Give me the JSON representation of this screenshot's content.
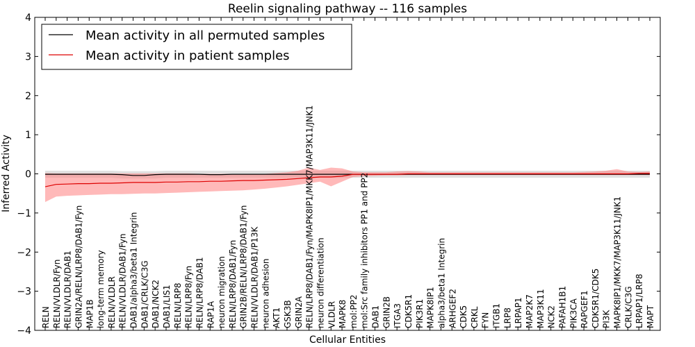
{
  "chart_data": {
    "type": "line",
    "title": "Reelin signaling pathway -- 116 samples",
    "xlabel": "Cellular Entities",
    "ylabel": "Inferred Activity",
    "ylim": [
      -4,
      4
    ],
    "yticks": [
      4,
      3,
      2,
      1,
      0,
      -1,
      -2,
      -3,
      -4
    ],
    "ytick_labels": [
      "4",
      "3",
      "2",
      "1",
      "0",
      "−1",
      "−2",
      "−3",
      "−4"
    ],
    "grid": false,
    "legend_position": "upper-left",
    "categories": [
      "RELN",
      "RELN/VLDLR/Fyn",
      "RELN/VLDLR/DAB1",
      "GRIN2A/RELN/LRP8/DAB1/Fyn",
      "MAP1B",
      "long-term memory",
      "RELN/VLDLR",
      "RELN/VLDLR/DAB1/Fyn",
      "DAB1/alpha3/beta1 Integrin",
      "DAB1/CRLK/C3G",
      "DAB1/NCK2",
      "DAB1/LIS1",
      "RELN/LRP8",
      "RELN/LRP8/Fyn",
      "RELN/LRP8/DAB1",
      "RAP1A",
      "neuron migration",
      "RELN/LRP8/DAB1/Fyn",
      "GRIN2B/RELN/LRP8/DAB1/Fyn",
      "RELN/VLDLR/DAB1/P13K",
      "neuron adhesion",
      "AKT1",
      "GSK3B",
      "GRIN2A",
      "RELN/LRP8/DAB1/Fyn/MAPK8IP1/MKK7/MAP3K11/JNK1",
      "neuron differentiation",
      "VLDLR",
      "MAPK8",
      "mol:PP2",
      "mol:Src family inhibitors PP1 and PP2",
      "DAB1",
      "GRIN2B",
      "ITGA3",
      "CDK5R1",
      "PIK3R1",
      "MAPK8IP1",
      "alpha3/beta1 Integrin",
      "ARHGEF2",
      "CDK5",
      "CRKL",
      "FYN",
      "ITGB1",
      "LRP8",
      "LRPAP1",
      "MAP2K7",
      "MAP3K11",
      "NCK2",
      "PAFAH1B1",
      "PIK3CA",
      "RAPGEF1",
      "CDK5R1/CDK5",
      "PI3K",
      "MAPK8IP1/MKK7/MAP3K11/JNK1",
      "CRLK/C3G",
      "LRPAP1/LRP8",
      "MAPT"
    ],
    "series": [
      {
        "name": "Mean activity in all permuted samples",
        "color": "#000000",
        "band_color": "#bbbbbb",
        "values": [
          -0.01,
          -0.01,
          -0.01,
          -0.01,
          -0.01,
          -0.01,
          -0.01,
          -0.02,
          -0.04,
          -0.04,
          -0.02,
          -0.01,
          -0.01,
          -0.01,
          -0.01,
          -0.02,
          -0.02,
          -0.01,
          -0.01,
          -0.01,
          -0.01,
          -0.01,
          -0.01,
          -0.01,
          -0.01,
          -0.01,
          -0.01,
          -0.01,
          -0.01,
          -0.01,
          -0.01,
          -0.01,
          -0.01,
          -0.01,
          -0.01,
          -0.01,
          -0.01,
          -0.01,
          -0.01,
          -0.01,
          -0.01,
          -0.01,
          -0.01,
          -0.01,
          -0.01,
          -0.01,
          -0.01,
          -0.01,
          -0.01,
          -0.01,
          -0.01,
          -0.01,
          -0.01,
          -0.01,
          -0.01,
          -0.01
        ],
        "lower": [
          -0.1,
          -0.1,
          -0.1,
          -0.1,
          -0.1,
          -0.1,
          -0.1,
          -0.12,
          -0.12,
          -0.12,
          -0.12,
          -0.1,
          -0.1,
          -0.1,
          -0.1,
          -0.1,
          -0.1,
          -0.1,
          -0.1,
          -0.1,
          -0.1,
          -0.1,
          -0.1,
          -0.1,
          -0.1,
          -0.1,
          -0.1,
          -0.1,
          -0.1,
          -0.1,
          -0.1,
          -0.1,
          -0.1,
          -0.1,
          -0.1,
          -0.1,
          -0.1,
          -0.1,
          -0.1,
          -0.1,
          -0.1,
          -0.1,
          -0.1,
          -0.1,
          -0.1,
          -0.1,
          -0.1,
          -0.1,
          -0.1,
          -0.1,
          -0.1,
          -0.1,
          -0.1,
          -0.1,
          -0.1,
          -0.1
        ],
        "upper": [
          0.08,
          0.08,
          0.08,
          0.08,
          0.08,
          0.08,
          0.08,
          0.07,
          0.07,
          0.07,
          0.07,
          0.08,
          0.08,
          0.08,
          0.08,
          0.08,
          0.08,
          0.08,
          0.08,
          0.08,
          0.08,
          0.08,
          0.08,
          0.08,
          0.08,
          0.08,
          0.08,
          0.08,
          0.08,
          0.08,
          0.08,
          0.08,
          0.08,
          0.08,
          0.08,
          0.08,
          0.08,
          0.08,
          0.08,
          0.08,
          0.08,
          0.08,
          0.08,
          0.08,
          0.08,
          0.08,
          0.08,
          0.08,
          0.08,
          0.08,
          0.08,
          0.08,
          0.08,
          0.08,
          0.08,
          0.08
        ]
      },
      {
        "name": "Mean activity in patient samples",
        "color": "#dd0000",
        "band_color": "#ff7f7f",
        "values": [
          -0.33,
          -0.27,
          -0.26,
          -0.25,
          -0.25,
          -0.24,
          -0.24,
          -0.23,
          -0.22,
          -0.22,
          -0.22,
          -0.21,
          -0.21,
          -0.2,
          -0.2,
          -0.19,
          -0.19,
          -0.18,
          -0.17,
          -0.17,
          -0.16,
          -0.15,
          -0.14,
          -0.12,
          -0.1,
          -0.08,
          -0.08,
          -0.06,
          -0.01,
          -0.01,
          -0.01,
          -0.01,
          -0.01,
          0.0,
          0.0,
          0.0,
          0.0,
          0.0,
          0.0,
          0.0,
          0.0,
          0.0,
          0.0,
          0.0,
          0.0,
          0.0,
          0.0,
          0.0,
          0.0,
          0.0,
          0.0,
          0.0,
          0.0,
          0.0,
          0.01,
          0.01
        ],
        "lower": [
          -0.72,
          -0.58,
          -0.56,
          -0.55,
          -0.54,
          -0.53,
          -0.52,
          -0.52,
          -0.51,
          -0.5,
          -0.5,
          -0.49,
          -0.48,
          -0.47,
          -0.46,
          -0.45,
          -0.44,
          -0.43,
          -0.42,
          -0.4,
          -0.38,
          -0.35,
          -0.32,
          -0.28,
          -0.24,
          -0.2,
          -0.32,
          -0.2,
          -0.08,
          -0.06,
          -0.05,
          -0.04,
          -0.04,
          -0.03,
          -0.03,
          -0.03,
          -0.03,
          -0.03,
          -0.03,
          -0.03,
          -0.03,
          -0.03,
          -0.03,
          -0.03,
          -0.03,
          -0.03,
          -0.03,
          -0.03,
          -0.03,
          -0.03,
          -0.03,
          -0.03,
          -0.03,
          -0.03,
          -0.03,
          -0.03
        ],
        "upper": [
          0.02,
          0.01,
          0.01,
          0.01,
          0.01,
          0.01,
          0.01,
          0.01,
          0.01,
          0.01,
          0.01,
          0.01,
          0.01,
          0.01,
          0.0,
          0.0,
          0.0,
          0.0,
          0.0,
          0.0,
          0.0,
          0.02,
          0.04,
          0.08,
          0.16,
          0.1,
          0.16,
          0.14,
          0.06,
          0.04,
          0.04,
          0.04,
          0.06,
          0.07,
          0.06,
          0.04,
          0.04,
          0.04,
          0.04,
          0.04,
          0.04,
          0.04,
          0.04,
          0.04,
          0.04,
          0.04,
          0.04,
          0.04,
          0.04,
          0.05,
          0.06,
          0.08,
          0.12,
          0.06,
          0.05,
          0.06
        ]
      }
    ]
  }
}
